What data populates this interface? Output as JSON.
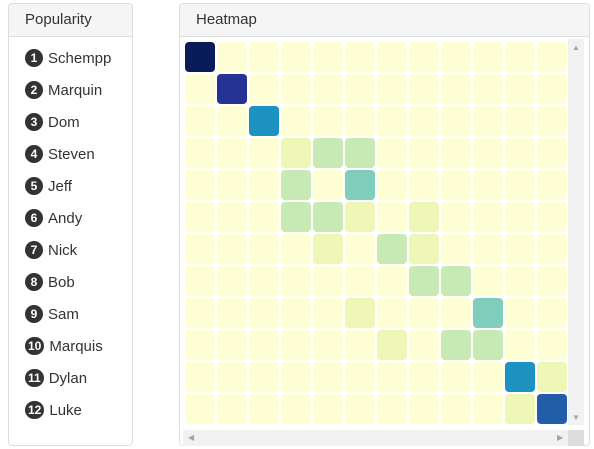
{
  "popularity_panel": {
    "title": "Popularity",
    "names": [
      {
        "rank": "1",
        "name": "Schempp"
      },
      {
        "rank": "2",
        "name": "Marquin"
      },
      {
        "rank": "3",
        "name": "Dom"
      },
      {
        "rank": "4",
        "name": "Steven"
      },
      {
        "rank": "5",
        "name": "Jeff"
      },
      {
        "rank": "6",
        "name": "Andy"
      },
      {
        "rank": "7",
        "name": "Nick"
      },
      {
        "rank": "8",
        "name": "Bob"
      },
      {
        "rank": "9",
        "name": "Sam"
      },
      {
        "rank": "10",
        "name": "Marquis"
      },
      {
        "rank": "11",
        "name": "Dylan"
      },
      {
        "rank": "12",
        "name": "Luke"
      }
    ]
  },
  "heatmap_panel": {
    "title": "Heatmap",
    "colors": {
      "0": "#fefed5",
      "1": "#eef7b8",
      "2": "#c7e9b4",
      "3": "#7fcdbb",
      "4": "#1d91c0",
      "5": "#225ea8",
      "6": "#253494",
      "7": "#081d58"
    },
    "matrix": [
      [
        7,
        0,
        0,
        0,
        0,
        0,
        0,
        0,
        0,
        0,
        0,
        0,
        0
      ],
      [
        0,
        6,
        0,
        0,
        0,
        0,
        0,
        0,
        0,
        0,
        0,
        0,
        0
      ],
      [
        0,
        0,
        4,
        0,
        0,
        0,
        0,
        0,
        0,
        0,
        0,
        0,
        0
      ],
      [
        0,
        0,
        0,
        1,
        2,
        2,
        0,
        0,
        0,
        0,
        0,
        0,
        0
      ],
      [
        0,
        0,
        0,
        2,
        0,
        3,
        0,
        0,
        0,
        0,
        0,
        0,
        0
      ],
      [
        0,
        0,
        0,
        2,
        2,
        1,
        0,
        1,
        0,
        0,
        0,
        0,
        0
      ],
      [
        0,
        0,
        0,
        0,
        1,
        0,
        2,
        1,
        0,
        0,
        0,
        0,
        0
      ],
      [
        0,
        0,
        0,
        0,
        0,
        0,
        0,
        2,
        2,
        0,
        0,
        0,
        0
      ],
      [
        0,
        0,
        0,
        0,
        0,
        1,
        0,
        0,
        0,
        3,
        0,
        0,
        0
      ],
      [
        0,
        0,
        0,
        0,
        0,
        0,
        1,
        0,
        2,
        2,
        0,
        0,
        0
      ],
      [
        0,
        0,
        0,
        0,
        0,
        0,
        0,
        0,
        0,
        0,
        4,
        1,
        0
      ],
      [
        0,
        0,
        0,
        0,
        0,
        0,
        0,
        0,
        0,
        0,
        1,
        5,
        0
      ]
    ]
  },
  "scrollbars": {
    "up_arrow": "▲",
    "down_arrow": "▼",
    "left_arrow": "◀",
    "right_arrow": "▶"
  }
}
